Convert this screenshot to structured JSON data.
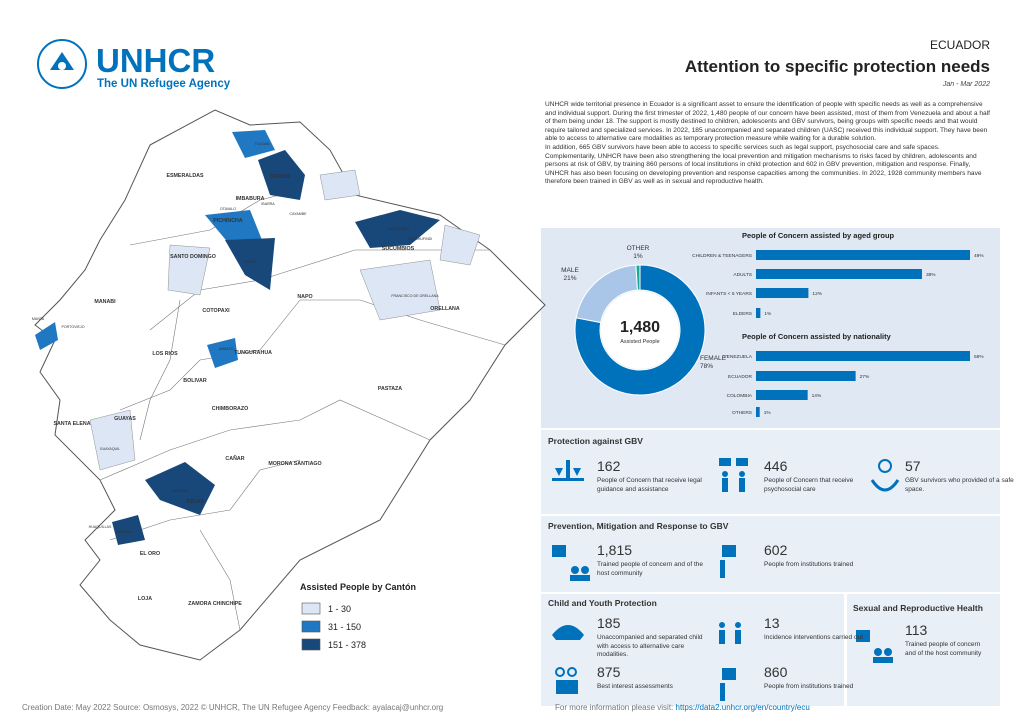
{
  "header": {
    "logo_name": "UNHCR",
    "logo_sub": "The UN Refugee Agency",
    "country": "ECUADOR",
    "title": "Attention to specific protection needs",
    "period": "Jan - Mar 2022"
  },
  "intro": [
    "UNHCR wide territorial presence in Ecuador is a significant asset to ensure the identification of people with specific needs as well as a comprehensive and individual support. During the first trimester of 2022, 1,480 people of our concern have been assisted, most of them from Venezuela and about a half of them being under 18. The support is mostly destined to children, adolescents and GBV survivors, being groups with specific needs and that would require tailored and specialized services. In 2022, 185 unaccompanied and separated children (UASC) received this individual support. They have been able to access to alternative care modalities as temporary protection measure while waiting for a durable solution.",
    "In addition, 665 GBV survivors have been able to access to specific services such as legal support, psychosocial care and safe spaces. Complementarily, UNHCR have been also strengthening the local prevention and mitigation mechanisms to risks faced by children, adolescents and persons at risk of GBV, by training 860 persons of local institutions in child protection and 602 in GBV prevention, mitigation and response. Finally, UNHCR has also been focusing on developing prevention and response capacities among the communities. In 2022, 1928 community members have therefore been trained in GBV as well as in sexual and reproductive health."
  ],
  "donut": {
    "total": "1,480",
    "center_label": "Assisted People",
    "categories": [
      "FEMALE",
      "MALE",
      "OTHER"
    ],
    "values": [
      78,
      21,
      1
    ],
    "value_labels": [
      "78%",
      "21%",
      "1%"
    ],
    "colors": [
      "#0072bc",
      "#a9c6e8",
      "#18a999"
    ]
  },
  "age_chart": {
    "title": "People of Concern assisted by aged group",
    "categories": [
      "CHILDREN & TEENAGERS",
      "ADULTS",
      "INFANTS < 5 YEARS",
      "ELDERS"
    ],
    "values": [
      49,
      38,
      12,
      1
    ],
    "value_labels": [
      "49%",
      "38%",
      "12%",
      "1%"
    ],
    "color": "#0072bc"
  },
  "nationality_chart": {
    "title": "People of Concern assisted by nationality",
    "categories": [
      "VENEZUELA",
      "ECUADOR",
      "COLOMBIA",
      "OTHERS"
    ],
    "values": [
      58,
      27,
      14,
      1
    ],
    "value_labels": [
      "58%",
      "27%",
      "14%",
      "1%"
    ],
    "color": "#0072bc"
  },
  "sections": [
    {
      "title": "Protection against GBV",
      "items": [
        {
          "value": "162",
          "text": "People of Concern that receive legal guidance and assistance"
        },
        {
          "value": "446",
          "text": "People of Concern that receive psychosocial care"
        },
        {
          "value": "57",
          "text": "GBV survivors who provided of a safe space."
        }
      ]
    },
    {
      "title": "Prevention, Mitigation and Response to GBV",
      "items": [
        {
          "value": "1,815",
          "text": "Trained people of concern and of the host community"
        },
        {
          "value": "602",
          "text": "People from institutions trained"
        }
      ]
    },
    {
      "title": "Child and Youth Protection",
      "items": [
        {
          "value": "185",
          "text": "Unaccompanied and separated child with access to alternative care modalities."
        },
        {
          "value": "13",
          "text": "Incidence interventions carried out"
        },
        {
          "value": "875",
          "text": "Best interest assessments"
        },
        {
          "value": "860",
          "text": "People from institutions trained"
        }
      ]
    },
    {
      "title": "Sexual and Reproductive Health",
      "items": [
        {
          "value": "113",
          "text": "Trained people of concern and of the host community"
        }
      ]
    }
  ],
  "map": {
    "legend_title": "Assisted People by Cantón",
    "legend": [
      {
        "label": "1 - 30",
        "color": "#dce6f5"
      },
      {
        "label": "31 - 150",
        "color": "#1f78c1"
      },
      {
        "label": "151 - 378",
        "color": "#18477a"
      }
    ],
    "provinces": [
      "ESMERALDAS",
      "CARCHI",
      "IMBABURA",
      "PICHINCHA",
      "SANTO DOMINGO",
      "MANABI",
      "NAPO",
      "SUCUMBIOS",
      "ORELLANA",
      "COTOPAXI",
      "LOS RIOS",
      "TUNGURAHUA",
      "BOLIVAR",
      "PASTAZA",
      "GUAYAS",
      "SANTA ELENA",
      "CHIMBORAZO",
      "CAÑAR",
      "MORONA SANTIAGO",
      "AZUAY",
      "EL ORO",
      "LOJA",
      "ZAMORA CHINCHIPE"
    ],
    "cantons": [
      "TULCAN",
      "QUITO",
      "LAGO AGRIO",
      "AMBATO",
      "CUENCA",
      "MACHALA",
      "GUAYAQUIL",
      "MANTA",
      "PORTOVIEJO",
      "IBARRA",
      "OTAVALO",
      "CAYAMBE",
      "SHUSHUFINDI",
      "FRANCISCO DE ORELLANA",
      "HUAQUILLAS"
    ]
  },
  "footer": {
    "credits": "Creation Date: May 2022   Source: Osmosys, 2022    © UNHCR, The UN Refugee Agency    Feedback: ayalacaj@unhcr.org",
    "more_info": "For more information please visit:",
    "link": "https://data2.unhcr.org/en/country/ecu"
  }
}
